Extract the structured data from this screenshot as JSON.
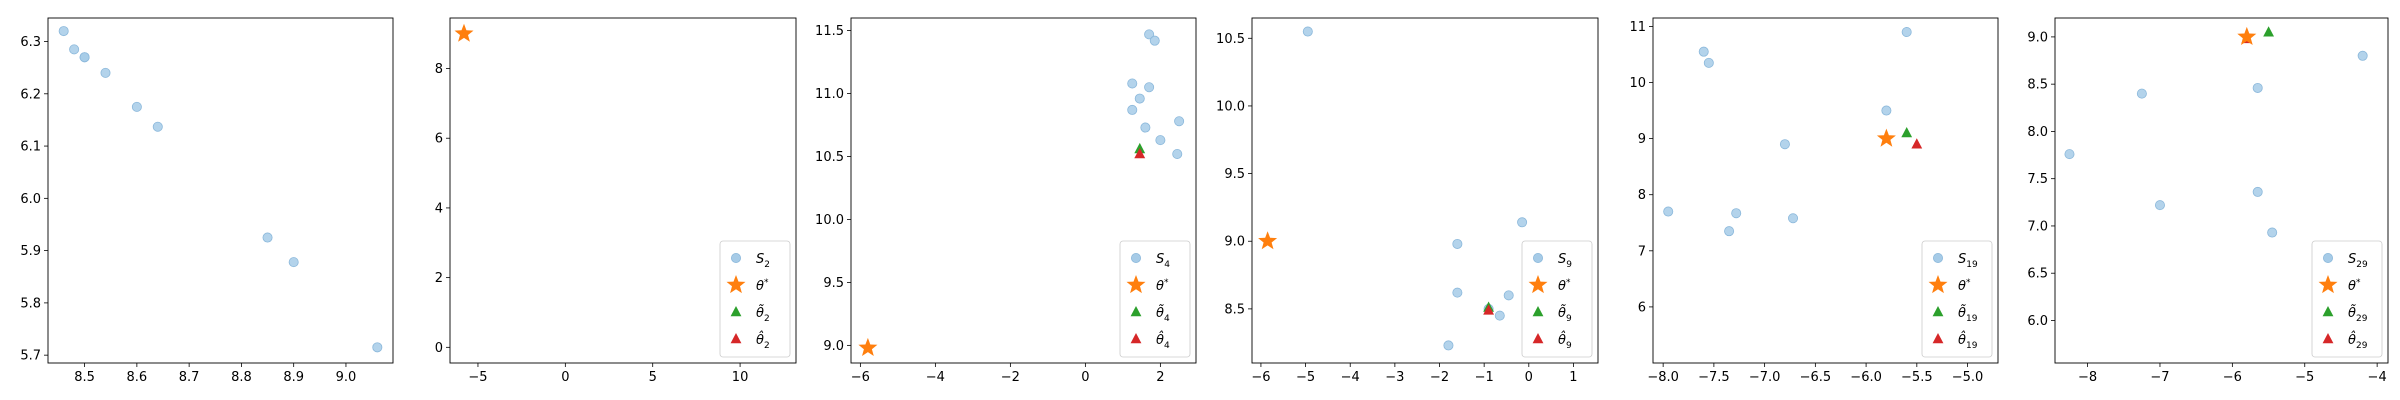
{
  "colors": {
    "sample": "#a6cbe7",
    "sample_edge": "#8bb8db",
    "theta_star": "#ff7f0e",
    "theta_tilde": "#2ca02c",
    "theta_hat": "#d62728",
    "axis": "#000000",
    "legend_edge": "#cccccc"
  },
  "chart_data": [
    {
      "type": "scatter",
      "xlim": [
        8.43,
        9.09
      ],
      "ylim": [
        5.685,
        6.345
      ],
      "xticks": [
        8.5,
        8.6,
        8.7,
        8.8,
        8.9,
        9.0
      ],
      "xtick_labels": [
        "8.5",
        "8.6",
        "8.7",
        "8.8",
        "8.9",
        "9.0"
      ],
      "yticks": [
        5.7,
        5.8,
        5.9,
        6.0,
        6.1,
        6.2,
        6.3
      ],
      "ytick_labels": [
        "5.7",
        "5.8",
        "5.9",
        "6.0",
        "6.1",
        "6.2",
        "6.3"
      ],
      "samples": [
        [
          8.46,
          6.32
        ],
        [
          8.48,
          6.285
        ],
        [
          8.5,
          6.27
        ],
        [
          8.5,
          6.27
        ],
        [
          8.54,
          6.24
        ],
        [
          8.6,
          6.175
        ],
        [
          8.64,
          6.137
        ],
        [
          8.85,
          5.925
        ],
        [
          8.9,
          5.878
        ],
        [
          9.06,
          5.715
        ]
      ],
      "theta_star": null,
      "theta_tilde": null,
      "theta_hat": null,
      "legend": null
    },
    {
      "type": "scatter",
      "xlim": [
        -6.6,
        13.2
      ],
      "ylim": [
        -0.45,
        9.45
      ],
      "xticks": [
        -5,
        0,
        5,
        10
      ],
      "xtick_labels": [
        "−5",
        "0",
        "5",
        "10"
      ],
      "yticks": [
        0,
        2,
        4,
        6,
        8
      ],
      "ytick_labels": [
        "0",
        "2",
        "4",
        "6",
        "8"
      ],
      "samples": [],
      "theta_star": [
        -5.8,
        9.0
      ],
      "theta_tilde": null,
      "theta_hat": null,
      "legend": {
        "location": "lower right",
        "entries": [
          [
            "S",
            "2"
          ],
          [
            "θ",
            "*"
          ],
          [
            "θ̃",
            "2"
          ],
          [
            "θ̂",
            "2"
          ]
        ]
      }
    },
    {
      "type": "scatter",
      "xlim": [
        -6.25,
        2.95
      ],
      "ylim": [
        8.86,
        11.6
      ],
      "xticks": [
        -6,
        -4,
        -2,
        0,
        2
      ],
      "xtick_labels": [
        "−6",
        "−4",
        "−2",
        "0",
        "2"
      ],
      "yticks": [
        9.0,
        9.5,
        10.0,
        10.5,
        11.0,
        11.5
      ],
      "ytick_labels": [
        "9.0",
        "9.5",
        "10.0",
        "10.5",
        "11.0",
        "11.5"
      ],
      "samples": [
        [
          1.25,
          11.08
        ],
        [
          1.25,
          10.87
        ],
        [
          1.45,
          10.96
        ],
        [
          1.6,
          10.73
        ],
        [
          1.7,
          11.05
        ],
        [
          1.7,
          11.47
        ],
        [
          1.85,
          11.42
        ],
        [
          2.0,
          10.63
        ],
        [
          2.45,
          10.52
        ],
        [
          2.5,
          10.78
        ]
      ],
      "theta_star": [
        -5.8,
        8.98
      ],
      "theta_tilde": [
        1.45,
        10.56
      ],
      "theta_hat": [
        1.45,
        10.52
      ],
      "legend": {
        "location": "lower right",
        "entries": [
          [
            "S",
            "4"
          ],
          [
            "θ",
            "*"
          ],
          [
            "θ̃",
            "4"
          ],
          [
            "θ̂",
            "4"
          ]
        ]
      }
    },
    {
      "type": "scatter",
      "xlim": [
        -6.2,
        1.55
      ],
      "ylim": [
        8.1,
        10.65
      ],
      "xticks": [
        -6,
        -5,
        -4,
        -3,
        -2,
        -1,
        0,
        1
      ],
      "xtick_labels": [
        "−6",
        "−5",
        "−4",
        "−3",
        "−2",
        "−1",
        "0",
        "1"
      ],
      "yticks": [
        8.5,
        9.0,
        9.5,
        10.0,
        10.5
      ],
      "ytick_labels": [
        "8.5",
        "9.0",
        "9.5",
        "10.0",
        "10.5"
      ],
      "samples": [
        [
          -4.95,
          10.55
        ],
        [
          -1.8,
          8.23
        ],
        [
          -1.6,
          8.98
        ],
        [
          -1.6,
          8.62
        ],
        [
          -0.9,
          8.5
        ],
        [
          -0.65,
          8.45
        ],
        [
          -0.45,
          8.6
        ],
        [
          -0.15,
          9.14
        ]
      ],
      "theta_star": [
        -5.85,
        9.0
      ],
      "theta_tilde": [
        -0.9,
        8.51
      ],
      "theta_hat": [
        -0.9,
        8.49
      ],
      "legend": {
        "location": "lower right",
        "entries": [
          [
            "S",
            "9"
          ],
          [
            "θ",
            "*"
          ],
          [
            "θ̃",
            "9"
          ],
          [
            "θ̂",
            "9"
          ]
        ]
      }
    },
    {
      "type": "scatter",
      "xlim": [
        -8.1,
        -4.7
      ],
      "ylim": [
        5.0,
        11.15
      ],
      "xticks": [
        -8.0,
        -7.5,
        -7.0,
        -6.5,
        -6.0,
        -5.5,
        -5.0
      ],
      "xtick_labels": [
        "−8.0",
        "−7.5",
        "−7.0",
        "−6.5",
        "−6.0",
        "−5.5",
        "−5.0"
      ],
      "yticks": [
        6,
        7,
        8,
        9,
        10,
        11
      ],
      "ytick_labels": [
        "6",
        "7",
        "8",
        "9",
        "10",
        "11"
      ],
      "samples": [
        [
          -7.95,
          7.7
        ],
        [
          -7.6,
          10.55
        ],
        [
          -7.55,
          10.35
        ],
        [
          -7.35,
          7.35
        ],
        [
          -7.28,
          7.67
        ],
        [
          -6.8,
          8.9
        ],
        [
          -6.72,
          7.58
        ],
        [
          -5.8,
          9.5
        ],
        [
          -5.6,
          10.9
        ]
      ],
      "theta_star": [
        -5.8,
        9.0
      ],
      "theta_tilde": [
        -5.6,
        9.1
      ],
      "theta_hat": [
        -5.5,
        8.9
      ],
      "legend": {
        "location": "lower right",
        "entries": [
          [
            "S",
            "19"
          ],
          [
            "θ",
            "*"
          ],
          [
            "θ̃",
            "19"
          ],
          [
            "θ̂",
            "19"
          ]
        ]
      }
    },
    {
      "type": "scatter",
      "xlim": [
        -8.45,
        -3.85
      ],
      "ylim": [
        5.55,
        9.2
      ],
      "xticks": [
        -8,
        -7,
        -6,
        -5,
        -4
      ],
      "xtick_labels": [
        "−8",
        "−7",
        "−6",
        "−5",
        "−4"
      ],
      "yticks": [
        6.0,
        6.5,
        7.0,
        7.5,
        8.0,
        8.5,
        9.0
      ],
      "ytick_labels": [
        "6.0",
        "6.5",
        "7.0",
        "7.5",
        "8.0",
        "8.5",
        "9.0"
      ],
      "samples": [
        [
          -8.25,
          7.76
        ],
        [
          -7.25,
          8.4
        ],
        [
          -7.0,
          7.22
        ],
        [
          -5.65,
          7.36
        ],
        [
          -5.65,
          8.46
        ],
        [
          -5.45,
          6.93
        ],
        [
          -4.2,
          8.8
        ]
      ],
      "theta_star": [
        -5.8,
        9.0
      ],
      "theta_tilde": [
        -5.5,
        9.05
      ],
      "theta_hat": [
        -5.8,
        8.98
      ],
      "legend": {
        "location": "lower right",
        "entries": [
          [
            "S",
            "29"
          ],
          [
            "θ",
            "*"
          ],
          [
            "θ̃",
            "29"
          ],
          [
            "θ̂",
            "29"
          ]
        ]
      }
    }
  ]
}
